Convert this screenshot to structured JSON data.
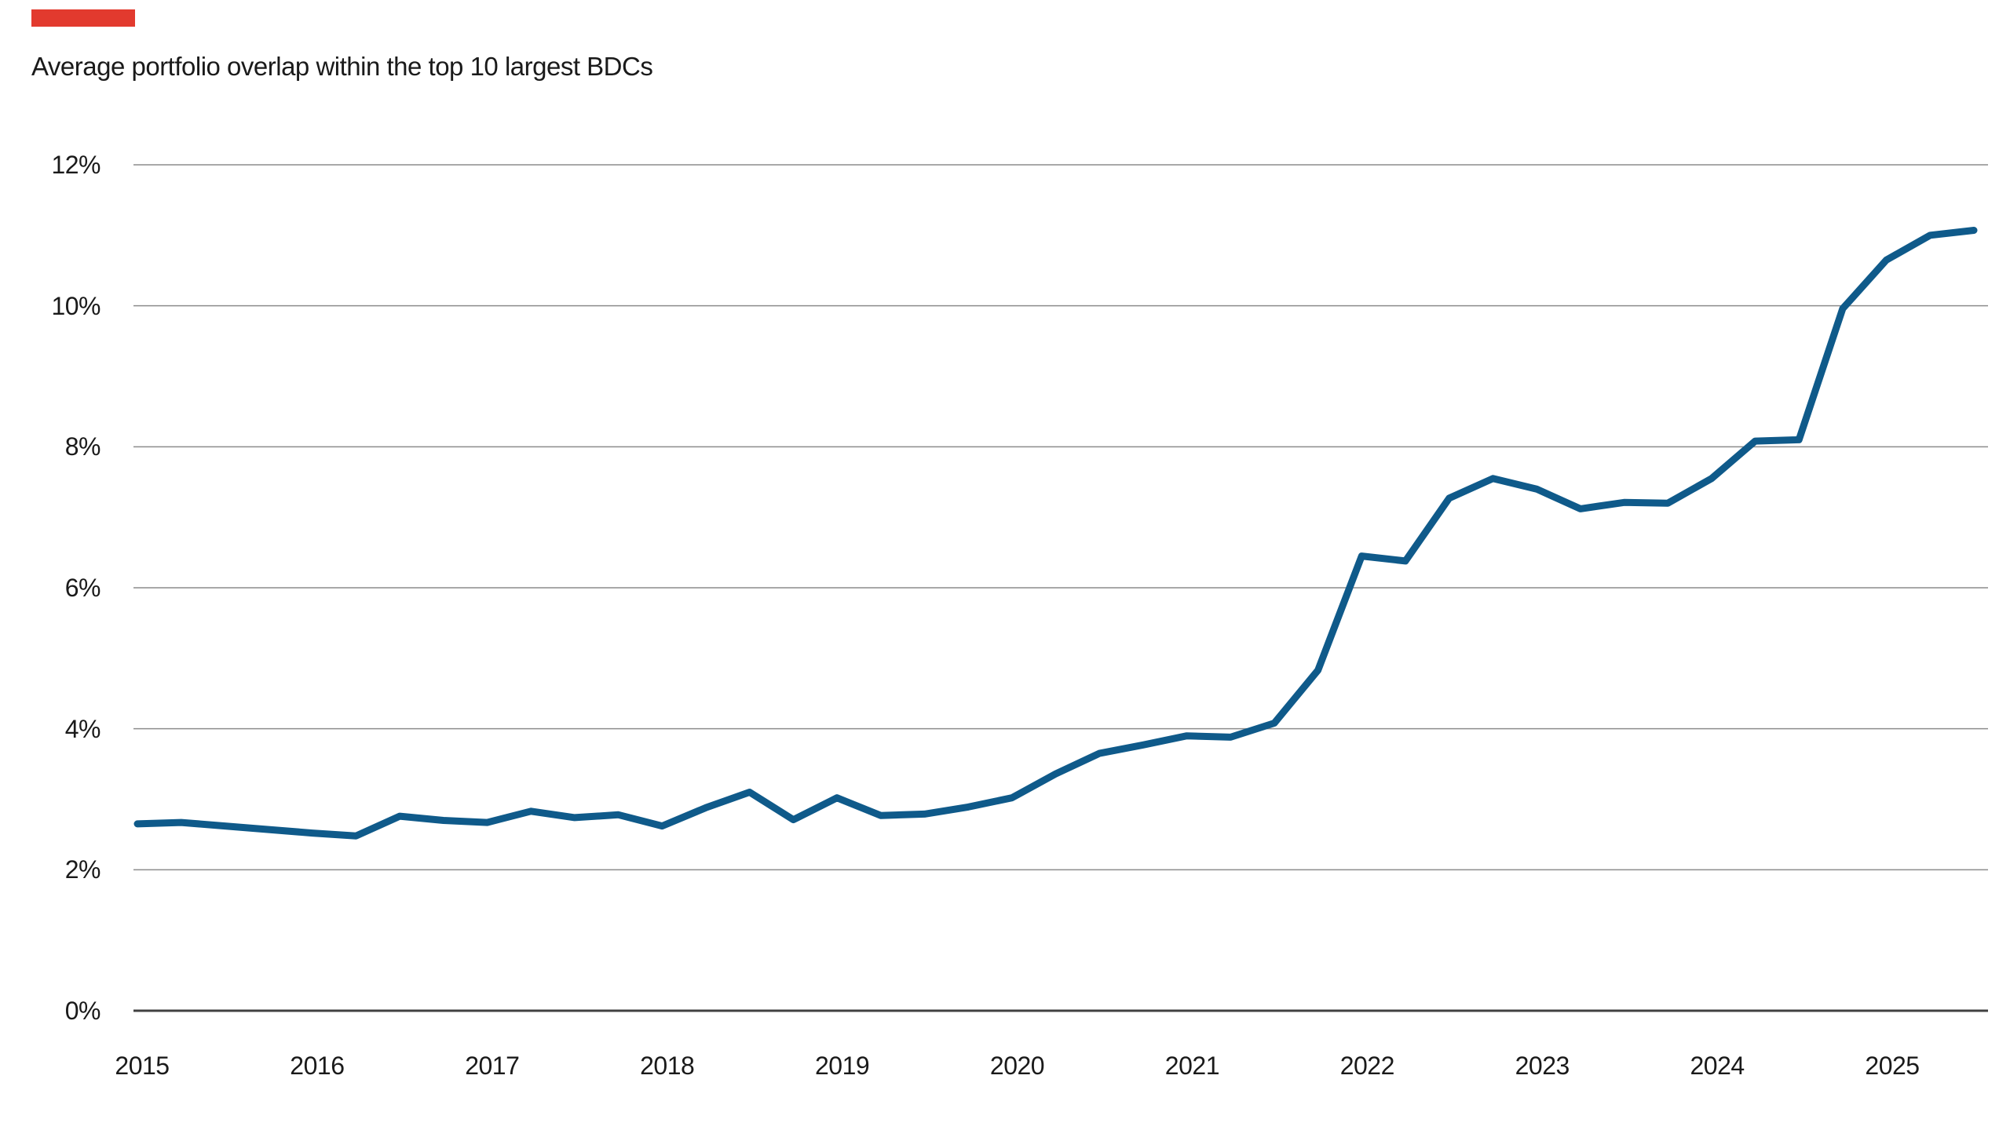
{
  "title": "Average portfolio overlap within the top 10 largest BDCs",
  "colors": {
    "accent_bar": "#e23a2e",
    "line": "#0f5a8a",
    "gridline": "#8c8c8c",
    "axis_line": "#404040",
    "text": "#1a1a1a",
    "background": "#ffffff"
  },
  "chart_data": {
    "type": "line",
    "title": "Average portfolio overlap within the top 10 largest BDCs",
    "xlabel": "",
    "ylabel": "",
    "ylim": [
      0,
      12
    ],
    "y_tick_step": 2,
    "grid": "horizontal-only",
    "legend": "none",
    "y_tick_labels": [
      "0%",
      "2%",
      "4%",
      "6%",
      "8%",
      "10%",
      "12%"
    ],
    "x_tick_labels": [
      "2015",
      "2016",
      "2017",
      "2018",
      "2019",
      "2020",
      "2021",
      "2022",
      "2023",
      "2024",
      "2025"
    ],
    "frequency": "quarterly",
    "series": [
      {
        "name": "Average portfolio overlap within the top 10 largest BDCs",
        "quarters": [
          "2015Q1",
          "2015Q2",
          "2015Q3",
          "2015Q4",
          "2016Q1",
          "2016Q2",
          "2016Q3",
          "2016Q4",
          "2017Q1",
          "2017Q2",
          "2017Q3",
          "2017Q4",
          "2018Q1",
          "2018Q2",
          "2018Q3",
          "2018Q4",
          "2019Q1",
          "2019Q2",
          "2019Q3",
          "2019Q4",
          "2020Q1",
          "2020Q2",
          "2020Q3",
          "2020Q4",
          "2021Q1",
          "2021Q2",
          "2021Q3",
          "2021Q4",
          "2022Q1",
          "2022Q2",
          "2022Q3",
          "2022Q4",
          "2023Q1",
          "2023Q2",
          "2023Q3",
          "2023Q4",
          "2024Q1",
          "2024Q2",
          "2024Q3",
          "2024Q4",
          "2025Q1",
          "2025Q2",
          "2025Q3"
        ],
        "values": [
          2.65,
          2.67,
          2.62,
          2.57,
          2.52,
          2.48,
          2.76,
          2.7,
          2.67,
          2.83,
          2.74,
          2.78,
          2.62,
          2.88,
          3.1,
          2.71,
          3.02,
          2.77,
          2.79,
          2.89,
          3.02,
          3.36,
          3.65,
          3.77,
          3.9,
          3.88,
          4.08,
          4.83,
          6.45,
          6.38,
          7.27,
          7.55,
          7.4,
          7.12,
          7.21,
          7.2,
          7.55,
          8.08,
          8.1,
          9.96,
          10.65,
          11.0,
          11.07
        ]
      }
    ]
  }
}
